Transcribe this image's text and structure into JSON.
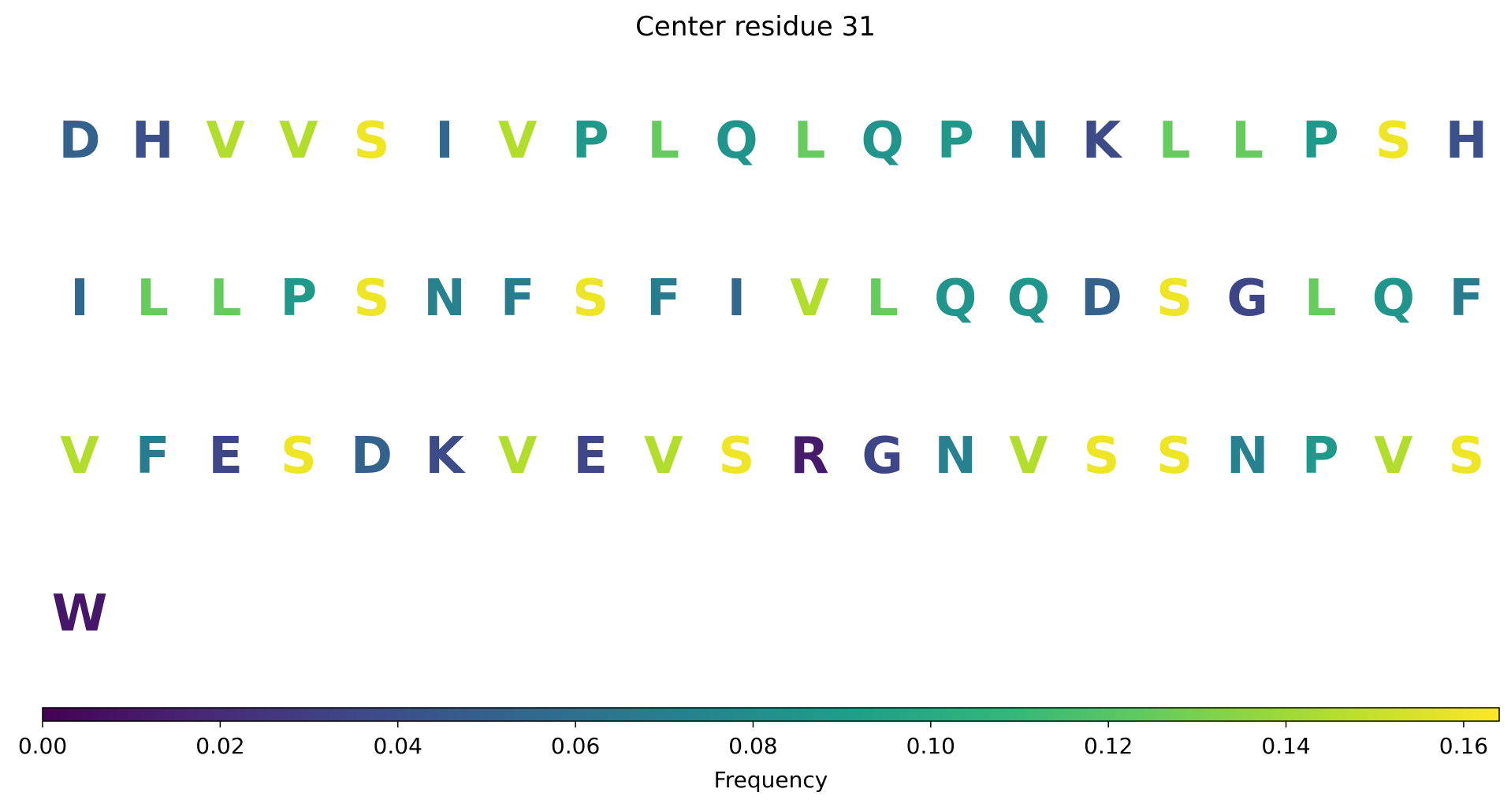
{
  "chart_data": {
    "type": "table",
    "title": "Center residue 31",
    "sequence": [
      {
        "residue": "D",
        "frequency": 0.052
      },
      {
        "residue": "H",
        "frequency": 0.04
      },
      {
        "residue": "V",
        "frequency": 0.145
      },
      {
        "residue": "V",
        "frequency": 0.145
      },
      {
        "residue": "S",
        "frequency": 0.16
      },
      {
        "residue": "I",
        "frequency": 0.055
      },
      {
        "residue": "V",
        "frequency": 0.145
      },
      {
        "residue": "P",
        "frequency": 0.088
      },
      {
        "residue": "L",
        "frequency": 0.125
      },
      {
        "residue": "Q",
        "frequency": 0.085
      },
      {
        "residue": "L",
        "frequency": 0.125
      },
      {
        "residue": "Q",
        "frequency": 0.085
      },
      {
        "residue": "P",
        "frequency": 0.088
      },
      {
        "residue": "N",
        "frequency": 0.072
      },
      {
        "residue": "K",
        "frequency": 0.038
      },
      {
        "residue": "L",
        "frequency": 0.125
      },
      {
        "residue": "L",
        "frequency": 0.125
      },
      {
        "residue": "P",
        "frequency": 0.088
      },
      {
        "residue": "S",
        "frequency": 0.16
      },
      {
        "residue": "H",
        "frequency": 0.04
      },
      {
        "residue": "I",
        "frequency": 0.055
      },
      {
        "residue": "L",
        "frequency": 0.125
      },
      {
        "residue": "L",
        "frequency": 0.125
      },
      {
        "residue": "P",
        "frequency": 0.088
      },
      {
        "residue": "S",
        "frequency": 0.16
      },
      {
        "residue": "N",
        "frequency": 0.072
      },
      {
        "residue": "F",
        "frequency": 0.068
      },
      {
        "residue": "S",
        "frequency": 0.16
      },
      {
        "residue": "F",
        "frequency": 0.068
      },
      {
        "residue": "I",
        "frequency": 0.055
      },
      {
        "residue": "V",
        "frequency": 0.145
      },
      {
        "residue": "L",
        "frequency": 0.125
      },
      {
        "residue": "Q",
        "frequency": 0.085
      },
      {
        "residue": "Q",
        "frequency": 0.085
      },
      {
        "residue": "D",
        "frequency": 0.052
      },
      {
        "residue": "S",
        "frequency": 0.16
      },
      {
        "residue": "G",
        "frequency": 0.035
      },
      {
        "residue": "L",
        "frequency": 0.125
      },
      {
        "residue": "Q",
        "frequency": 0.085
      },
      {
        "residue": "F",
        "frequency": 0.068
      },
      {
        "residue": "V",
        "frequency": 0.145
      },
      {
        "residue": "F",
        "frequency": 0.068
      },
      {
        "residue": "E",
        "frequency": 0.035
      },
      {
        "residue": "S",
        "frequency": 0.16
      },
      {
        "residue": "D",
        "frequency": 0.052
      },
      {
        "residue": "K",
        "frequency": 0.038
      },
      {
        "residue": "V",
        "frequency": 0.145
      },
      {
        "residue": "E",
        "frequency": 0.035
      },
      {
        "residue": "V",
        "frequency": 0.145
      },
      {
        "residue": "S",
        "frequency": 0.16
      },
      {
        "residue": "R",
        "frequency": 0.012
      },
      {
        "residue": "G",
        "frequency": 0.035
      },
      {
        "residue": "N",
        "frequency": 0.072
      },
      {
        "residue": "V",
        "frequency": 0.145
      },
      {
        "residue": "S",
        "frequency": 0.16
      },
      {
        "residue": "S",
        "frequency": 0.16
      },
      {
        "residue": "N",
        "frequency": 0.072
      },
      {
        "residue": "P",
        "frequency": 0.088
      },
      {
        "residue": "V",
        "frequency": 0.145
      },
      {
        "residue": "S",
        "frequency": 0.16
      },
      {
        "residue": "W",
        "frequency": 0.01
      }
    ],
    "residues_per_row": 20,
    "colorbar": {
      "colormap": "viridis",
      "orientation": "horizontal",
      "label": "Frequency",
      "range": [
        0,
        0.164
      ],
      "ticks": [
        0.0,
        0.02,
        0.04,
        0.06,
        0.08,
        0.1,
        0.12,
        0.14,
        0.16
      ],
      "tick_labels": [
        "0.00",
        "0.02",
        "0.04",
        "0.06",
        "0.08",
        "0.10",
        "0.12",
        "0.14",
        "0.16"
      ]
    }
  }
}
